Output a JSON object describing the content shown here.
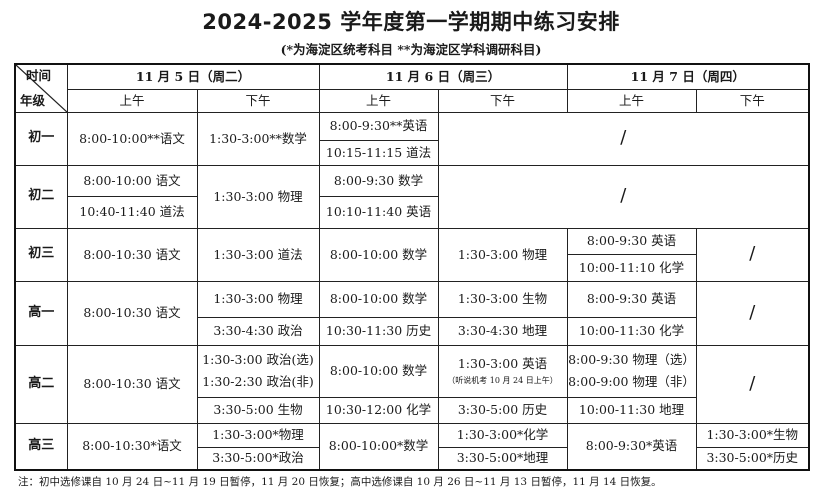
{
  "title": "2024-2025 学年度第一学期期中练习安排",
  "subtitle": "(*为海淀区统考科目   **为海淀区学科调研科目)",
  "header": {
    "corner_top": "时间",
    "corner_bottom": "年级",
    "days": [
      "11 月 5 日（周二）",
      "11 月 6 日（周三）",
      "11 月 7 日（周四）"
    ],
    "halves": [
      "上午",
      "下午",
      "上午",
      "下午",
      "上午",
      "下午"
    ]
  },
  "rows": [
    [
      {
        "t": [
          "初一"
        ],
        "g": 1,
        "rs": 2
      },
      {
        "t": [
          "8:00-10:00**语文"
        ],
        "rs": 2
      },
      {
        "t": [
          "1:30-3:00**数学"
        ],
        "rs": 2
      },
      {
        "t": [
          "8:00-9:30**英语"
        ]
      },
      {
        "t": [
          "/"
        ],
        "cs": 3,
        "rs": 2,
        "slash": 1
      }
    ],
    [
      {
        "t": [
          "10:15-11:15 道法"
        ]
      }
    ],
    [
      {
        "t": [
          "初二"
        ],
        "g": 1,
        "rs": 2
      },
      {
        "t": [
          "8:00-10:00 语文"
        ]
      },
      {
        "t": [
          "1:30-3:00 物理"
        ],
        "rs": 2
      },
      {
        "t": [
          "8:00-9:30 数学"
        ]
      },
      {
        "t": [
          "/"
        ],
        "cs": 3,
        "rs": 2,
        "slash": 1
      }
    ],
    [
      {
        "t": [
          "10:40-11:40 道法"
        ]
      },
      {
        "t": [
          "10:10-11:40 英语"
        ]
      }
    ],
    [
      {
        "t": [
          "初三"
        ],
        "g": 1,
        "rs": 2
      },
      {
        "t": [
          "8:00-10:30 语文"
        ],
        "rs": 2
      },
      {
        "t": [
          "1:30-3:00 道法"
        ],
        "rs": 2
      },
      {
        "t": [
          "8:00-10:00 数学"
        ],
        "rs": 2
      },
      {
        "t": [
          "1:30-3:00 物理"
        ],
        "rs": 2
      },
      {
        "t": [
          "8:00-9:30 英语"
        ]
      },
      {
        "t": [
          "/"
        ],
        "rs": 2,
        "slash": 1
      }
    ],
    [
      {
        "t": [
          "10:00-11:10 化学"
        ]
      }
    ],
    [
      {
        "t": [
          "高一"
        ],
        "g": 1,
        "rs": 2
      },
      {
        "t": [
          "8:00-10:30 语文"
        ],
        "rs": 2
      },
      {
        "t": [
          "1:30-3:00 物理"
        ]
      },
      {
        "t": [
          "8:00-10:00 数学"
        ]
      },
      {
        "t": [
          "1:30-3:00 生物"
        ]
      },
      {
        "t": [
          "8:00-9:30 英语"
        ]
      },
      {
        "t": [
          "/"
        ],
        "rs": 2,
        "slash": 1
      }
    ],
    [
      {
        "t": [
          "3:30-4:30 政治"
        ]
      },
      {
        "t": [
          "10:30-11:30 历史"
        ]
      },
      {
        "t": [
          "3:30-4:30 地理"
        ]
      },
      {
        "t": [
          "10:00-11:30 化学"
        ]
      }
    ],
    [
      {
        "t": [
          "高二"
        ],
        "g": 1,
        "rs": 2
      },
      {
        "t": [
          "8:00-10:30 语文"
        ],
        "rs": 2
      },
      {
        "t": [
          "1:30-3:00 政治(选)",
          "1:30-2:30 政治(非)"
        ]
      },
      {
        "t": [
          "8:00-10:00 数学"
        ]
      },
      {
        "t": [
          "1:30-3:00 英语",
          "（听说机考 10 月 24 日上午）"
        ],
        "small": 1
      },
      {
        "t": [
          "8:00-9:30 物理（选）",
          "8:00-9:00 物理（非）"
        ]
      },
      {
        "t": [
          "/"
        ],
        "rs": 2,
        "slash": 1
      }
    ],
    [
      {
        "t": [
          "3:30-5:00 生物"
        ]
      },
      {
        "t": [
          "10:30-12:00 化学"
        ]
      },
      {
        "t": [
          "3:30-5:00  历史"
        ]
      },
      {
        "t": [
          "10:00-11:30 地理"
        ]
      }
    ],
    [
      {
        "t": [
          "高三"
        ],
        "g": 1,
        "rs": 2
      },
      {
        "t": [
          "8:00-10:30*语文"
        ],
        "rs": 2
      },
      {
        "t": [
          "1:30-3:00*物理"
        ]
      },
      {
        "t": [
          "8:00-10:00*数学"
        ],
        "rs": 2
      },
      {
        "t": [
          "1:30-3:00*化学"
        ]
      },
      {
        "t": [
          "8:00-9:30*英语"
        ],
        "rs": 2
      },
      {
        "t": [
          "1:30-3:00*生物"
        ]
      }
    ],
    [
      {
        "t": [
          "3:30-5:00*政治"
        ]
      },
      {
        "t": [
          "3:30-5:00*地理"
        ]
      },
      {
        "t": [
          "3:30-5:00*历史"
        ]
      }
    ]
  ],
  "note": "注：初中选修课自 10 月 24 日~11 月 19 日暂停，11 月 20 日恢复；高中选修课自 10 月 26 日~11 月 13 日暂停，11 月 14 日恢复。"
}
